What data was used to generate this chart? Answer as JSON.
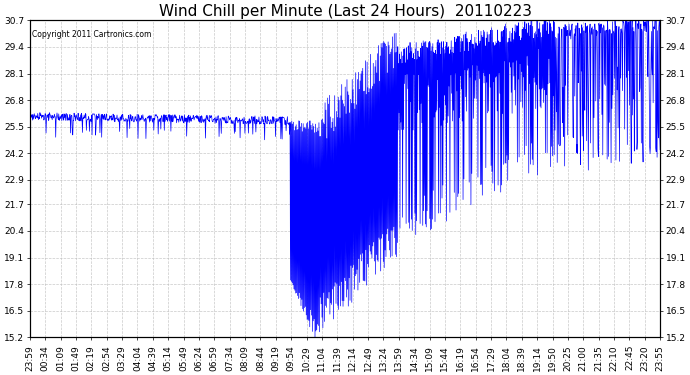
{
  "title": "Wind Chill per Minute (Last 24 Hours)  20110223",
  "copyright": "Copyright 2011 Cartronics.com",
  "line_color": "#0000FF",
  "bg_color": "#FFFFFF",
  "plot_bg_color": "#FFFFFF",
  "grid_color": "#BBBBBB",
  "ylim": [
    15.2,
    30.7
  ],
  "yticks": [
    15.2,
    16.5,
    17.8,
    19.1,
    20.4,
    21.7,
    22.9,
    24.2,
    25.5,
    26.8,
    28.1,
    29.4,
    30.7
  ],
  "xtick_labels": [
    "23:59",
    "00:34",
    "01:09",
    "01:49",
    "02:19",
    "02:54",
    "03:29",
    "04:04",
    "04:39",
    "05:14",
    "05:49",
    "06:24",
    "06:59",
    "07:34",
    "08:09",
    "08:44",
    "09:19",
    "09:54",
    "10:29",
    "11:04",
    "11:39",
    "12:14",
    "12:49",
    "13:24",
    "13:59",
    "14:34",
    "15:09",
    "15:44",
    "16:19",
    "16:54",
    "17:29",
    "18:04",
    "18:39",
    "19:14",
    "19:50",
    "20:25",
    "21:00",
    "21:35",
    "22:10",
    "22:45",
    "23:20",
    "23:55"
  ],
  "title_fontsize": 11,
  "tick_fontsize": 6.5,
  "figsize": [
    6.9,
    3.75
  ],
  "dpi": 100
}
